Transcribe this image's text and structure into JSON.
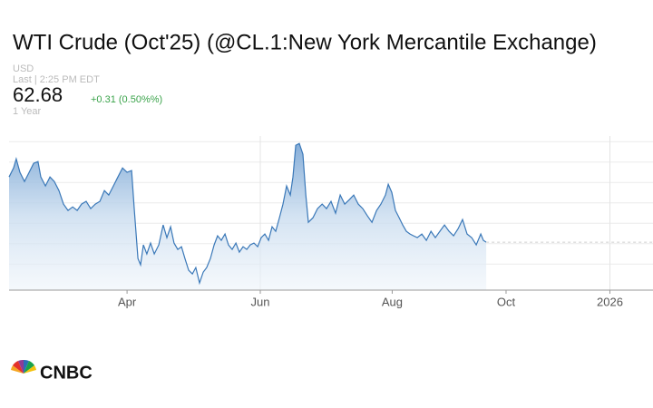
{
  "header": {
    "currency": "USD",
    "last": "Last | 2:25 PM EDT",
    "price": "62.68",
    "change": "+0.31 (0.50%%)",
    "range": "1 Year"
  },
  "logo": "CNBC",
  "chart_data": {
    "type": "area",
    "title": "WTI Crude (Oct'25) (@CL.1:New York Mercantile Exchange)",
    "color": "#3a78b8",
    "x": [
      0,
      2.1,
      3.3,
      5,
      7.1,
      9.2,
      11.3,
      13.3,
      14.6,
      16.7,
      18.8,
      20.8,
      22.9,
      25,
      27.1,
      29.2,
      31.3,
      33.3,
      35.4,
      37.5,
      39.6,
      41.7,
      43.8,
      45.8,
      47.9,
      50,
      52.1,
      54.2,
      56.3,
      57.5,
      59.2,
      60.4,
      61.7,
      63.3,
      65,
      66.7,
      68.8,
      70.8,
      72.5,
      74.2,
      75.8,
      77.5,
      79.2,
      80.8,
      82.5,
      84.2,
      85.8,
      87.5,
      89.2,
      90.8,
      92.5,
      94.2,
      95.8,
      97.5,
      99.2,
      100.8,
      102.5,
      104.2,
      105.8,
      107.5,
      109.2,
      110.8,
      112.5,
      114.2,
      115.8,
      117.5,
      119.2,
      120.8,
      122.5,
      124.2,
      125.8,
      127.5,
      129.2,
      130.4,
      131.7,
      133.3,
      135,
      136.3,
      137.5,
      139.6,
      141.7,
      143.8,
      145.8,
      147.9,
      150,
      152.1,
      154.2,
      156.3,
      158.3,
      160.4,
      162.5,
      164.6,
      166.7,
      168.8,
      170.8,
      172.9,
      174.2,
      175.8,
      177.5,
      179.2,
      180.8,
      182.5,
      184.2,
      185.8,
      187.5,
      189.6,
      191.7,
      193.8,
      195.8,
      197.9,
      200,
      202.1,
      204.2,
      206.3,
      208.3,
      210.4,
      212.5,
      214.6,
      216.7,
      217.9,
      219.2
    ],
    "values": [
      70.68,
      71.79,
      72.9,
      71.24,
      70.12,
      71.24,
      72.35,
      72.57,
      70.68,
      69.57,
      70.68,
      70.12,
      69.01,
      67.35,
      66.57,
      67.01,
      66.57,
      67.35,
      67.68,
      66.79,
      67.35,
      67.68,
      69.01,
      68.46,
      69.57,
      70.68,
      71.79,
      71.24,
      71.46,
      66.79,
      60.68,
      59.9,
      62.35,
      61.24,
      62.57,
      61.24,
      62.35,
      64.79,
      63.24,
      64.57,
      62.57,
      61.79,
      62.12,
      60.68,
      59.24,
      58.79,
      59.57,
      57.68,
      59.01,
      59.57,
      60.68,
      62.35,
      63.46,
      62.9,
      63.68,
      62.35,
      61.79,
      62.57,
      61.46,
      62.12,
      61.79,
      62.35,
      62.57,
      62.12,
      63.24,
      63.68,
      62.9,
      64.57,
      64.01,
      65.68,
      67.35,
      69.57,
      68.46,
      70.68,
      74.57,
      74.79,
      73.46,
      68.46,
      65.12,
      65.68,
      66.79,
      67.35,
      66.79,
      67.68,
      66.24,
      68.46,
      67.35,
      67.9,
      68.46,
      67.35,
      66.79,
      65.9,
      65.12,
      66.57,
      67.35,
      68.46,
      69.79,
      68.79,
      66.57,
      65.68,
      64.79,
      64.01,
      63.68,
      63.46,
      63.24,
      63.68,
      62.9,
      64.01,
      63.24,
      64.01,
      64.79,
      64.01,
      63.46,
      64.35,
      65.46,
      63.68,
      63.24,
      62.35,
      63.68,
      62.9,
      62.68
    ],
    "xlim": [
      0,
      295.8
    ],
    "xticks": [
      {
        "value": 54.2,
        "label": "Apr"
      },
      {
        "value": 115.4,
        "label": "Jun"
      },
      {
        "value": 176,
        "label": "Aug"
      },
      {
        "value": 228.3,
        "label": "Oct"
      },
      {
        "value": 276,
        "label": "2026"
      }
    ],
    "xgrid": [
      115.4,
      276
    ],
    "ylim": [
      56.8,
      75.7
    ],
    "ygrid": [
      60,
      62.5,
      65,
      67.5,
      70,
      72.5,
      75
    ]
  }
}
